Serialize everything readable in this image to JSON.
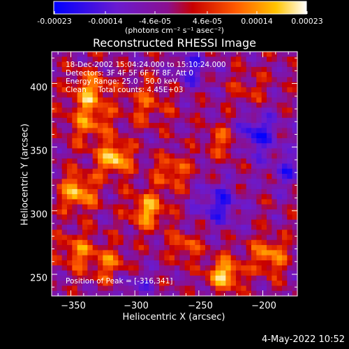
{
  "colorbar": {
    "tick_labels": [
      "-0.00023",
      "-0.00014",
      "-4.6e-05",
      "4.6e-05",
      "0.00014",
      "0.00023"
    ],
    "units_label": "(photons cm⁻² s⁻¹ asec⁻²)",
    "range": [
      -0.00023,
      0.00023
    ]
  },
  "info": {
    "time_range": "18-Dec-2002 15:04:24.000 to 15:10:24.000",
    "detectors": "Detectors: 3F 4F 5F 6F 7F 8F, Att 0",
    "energy_range": "Energy Range: 25.0 - 50.0 keV",
    "algorithm_counts": "Clean     Total counts: 4.45E+03",
    "peak_position": "Position of Peak = [-316,341]"
  },
  "timestamp": "4-May-2022 10:52",
  "chart_data": {
    "type": "heatmap",
    "title": "Reconstructed RHESSI Image",
    "xlabel": "Heliocentric X (arcsec)",
    "ylabel": "Heliocentric Y (arcsec)",
    "xlim": [
      -365,
      -173
    ],
    "ylim": [
      233,
      425
    ],
    "x_ticks": [
      -350,
      -300,
      -250,
      -200
    ],
    "y_ticks": [
      250,
      300,
      350,
      400
    ],
    "x_tick_labels": [
      "−350",
      "−300",
      "−250",
      "−200"
    ],
    "y_tick_labels": [
      "250",
      "300",
      "350",
      "400"
    ],
    "colormap": "blue-purple-red-orange-yellow-white",
    "peak": [
      -316,
      341
    ],
    "grid": false,
    "blobs": [
      {
        "x": -316,
        "y": 341,
        "a": 1.0,
        "s": 9
      },
      {
        "x": -345,
        "y": 315,
        "a": 0.85,
        "s": 10
      },
      {
        "x": -335,
        "y": 370,
        "a": 0.6,
        "s": 12
      },
      {
        "x": -335,
        "y": 395,
        "a": 0.7,
        "s": 10
      },
      {
        "x": -290,
        "y": 385,
        "a": 0.45,
        "s": 12
      },
      {
        "x": -290,
        "y": 300,
        "a": 0.8,
        "s": 10
      },
      {
        "x": -270,
        "y": 330,
        "a": 0.55,
        "s": 10
      },
      {
        "x": -230,
        "y": 355,
        "a": 0.5,
        "s": 10
      },
      {
        "x": -230,
        "y": 250,
        "a": 0.95,
        "s": 9
      },
      {
        "x": -195,
        "y": 265,
        "a": 0.7,
        "s": 10
      },
      {
        "x": -345,
        "y": 268,
        "a": 0.6,
        "s": 10
      },
      {
        "x": -320,
        "y": 258,
        "a": 0.55,
        "s": 10
      },
      {
        "x": -260,
        "y": 272,
        "a": 0.5,
        "s": 9
      },
      {
        "x": -210,
        "y": 395,
        "a": 0.3,
        "s": 10
      },
      {
        "x": -205,
        "y": 360,
        "a": -0.7,
        "s": 12
      },
      {
        "x": -255,
        "y": 412,
        "a": -0.5,
        "s": 10
      },
      {
        "x": -235,
        "y": 305,
        "a": -0.6,
        "s": 12
      },
      {
        "x": -180,
        "y": 330,
        "a": -0.45,
        "s": 10
      },
      {
        "x": -300,
        "y": 240,
        "a": -0.4,
        "s": 10
      }
    ]
  }
}
